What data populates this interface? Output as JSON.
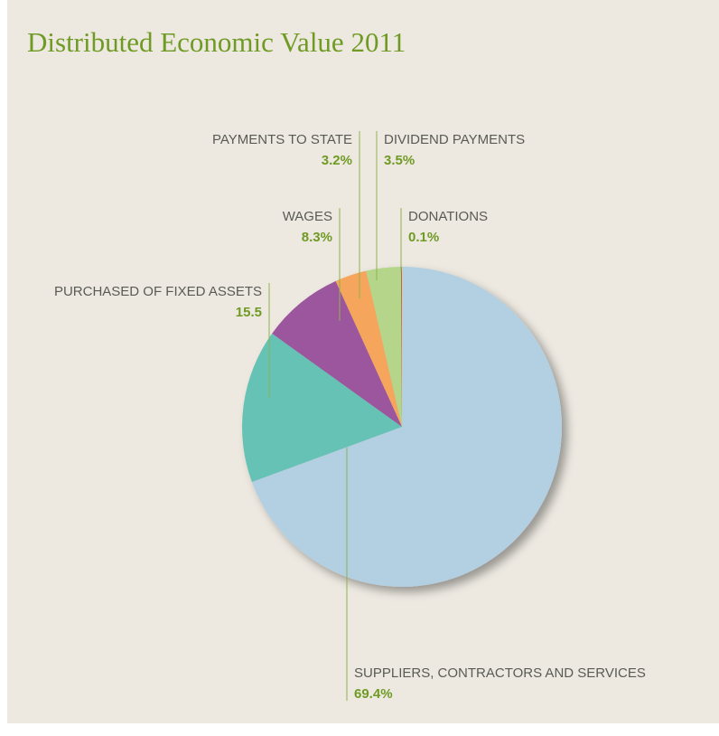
{
  "chart_data": {
    "type": "pie",
    "title": "Distributed Economic Value 2011",
    "categories": [
      "SUPPLIERS, CONTRACTORS AND SERVICES",
      "PURCHASED OF FIXED ASSETS",
      "WAGES",
      "PAYMENTS TO STATE",
      "DIVIDEND PAYMENTS",
      "DONATIONS"
    ],
    "values": [
      69.4,
      15.5,
      8.3,
      3.2,
      3.5,
      0.1
    ],
    "value_labels": [
      "69.4%",
      "15.5",
      "8.3%",
      "3.2%",
      "3.5%",
      "0.1%"
    ],
    "colors": [
      "#b3cfe2",
      "#66c2b5",
      "#9c569e",
      "#f5a55c",
      "#b5d68a",
      "#d0651d"
    ]
  }
}
